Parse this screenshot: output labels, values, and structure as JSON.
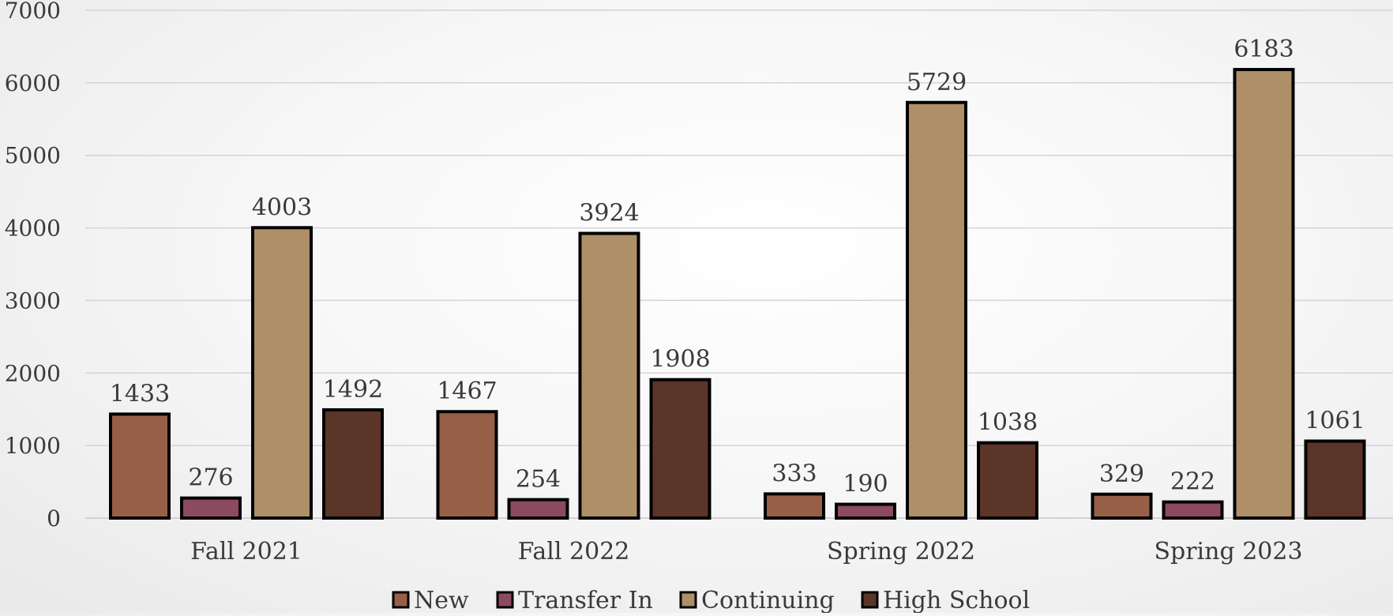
{
  "chart_data": {
    "type": "bar",
    "title": "",
    "xlabel": "",
    "ylabel": "",
    "categories": [
      "Fall 2021",
      "Fall 2022",
      "Spring 2022",
      "Spring 2023"
    ],
    "series": [
      {
        "name": "New",
        "color": "#975f47",
        "values": [
          1433,
          1467,
          333,
          329
        ]
      },
      {
        "name": "Transfer In",
        "color": "#8c4a62",
        "values": [
          276,
          254,
          190,
          222
        ]
      },
      {
        "name": "Continuing",
        "color": "#ae8f67",
        "values": [
          4003,
          3924,
          5729,
          6183
        ]
      },
      {
        "name": "High School",
        "color": "#5a3528",
        "values": [
          1492,
          1908,
          1038,
          1061
        ]
      }
    ],
    "ylim": [
      0,
      7000
    ],
    "yticks": [
      "0",
      "1000",
      "2000",
      "3000",
      "4000",
      "5000",
      "6000",
      "7000"
    ],
    "grid": true,
    "legend_position": "bottom",
    "data_labels": true,
    "gridline_color": "#d4d4d4",
    "bar_outline_color": "#000000"
  }
}
